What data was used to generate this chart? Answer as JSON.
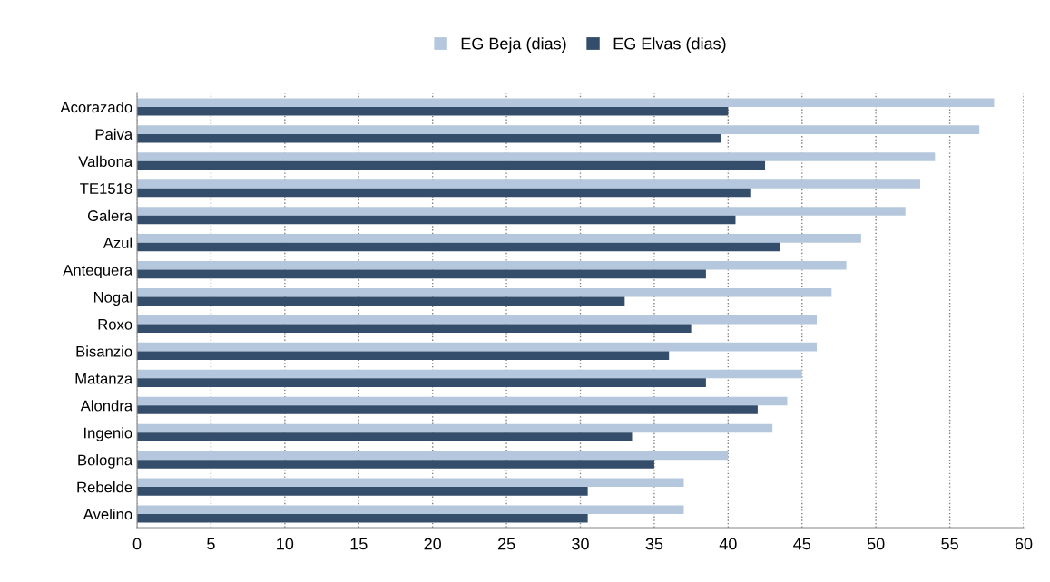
{
  "chart_data": {
    "type": "bar",
    "orientation": "horizontal",
    "categories": [
      "Acorazado",
      "Paiva",
      "Valbona",
      "TE1518",
      "Galera",
      "Azul",
      "Antequera",
      "Nogal",
      "Roxo",
      "Bisanzio",
      "Matanza",
      "Alondra",
      "Ingenio",
      "Bologna",
      "Rebelde",
      "Avelino"
    ],
    "series": [
      {
        "name": "EG Beja (dias)",
        "color": "#b4c7dc",
        "values": [
          58,
          57,
          54,
          53,
          52,
          49,
          48,
          47,
          46,
          46,
          45,
          44,
          43,
          40,
          37,
          37
        ]
      },
      {
        "name": "EG Elvas (dias)",
        "color": "#344d6b",
        "values": [
          40,
          39.5,
          42.5,
          41.5,
          40.5,
          43.5,
          38.5,
          33,
          37.5,
          36,
          38.5,
          42,
          33.5,
          35,
          30.5,
          30.5
        ]
      }
    ],
    "xlim": [
      0,
      60
    ],
    "xticks": [
      0,
      5,
      10,
      15,
      20,
      25,
      30,
      35,
      40,
      45,
      50,
      55,
      60
    ],
    "grid": "x",
    "legend": "top"
  }
}
